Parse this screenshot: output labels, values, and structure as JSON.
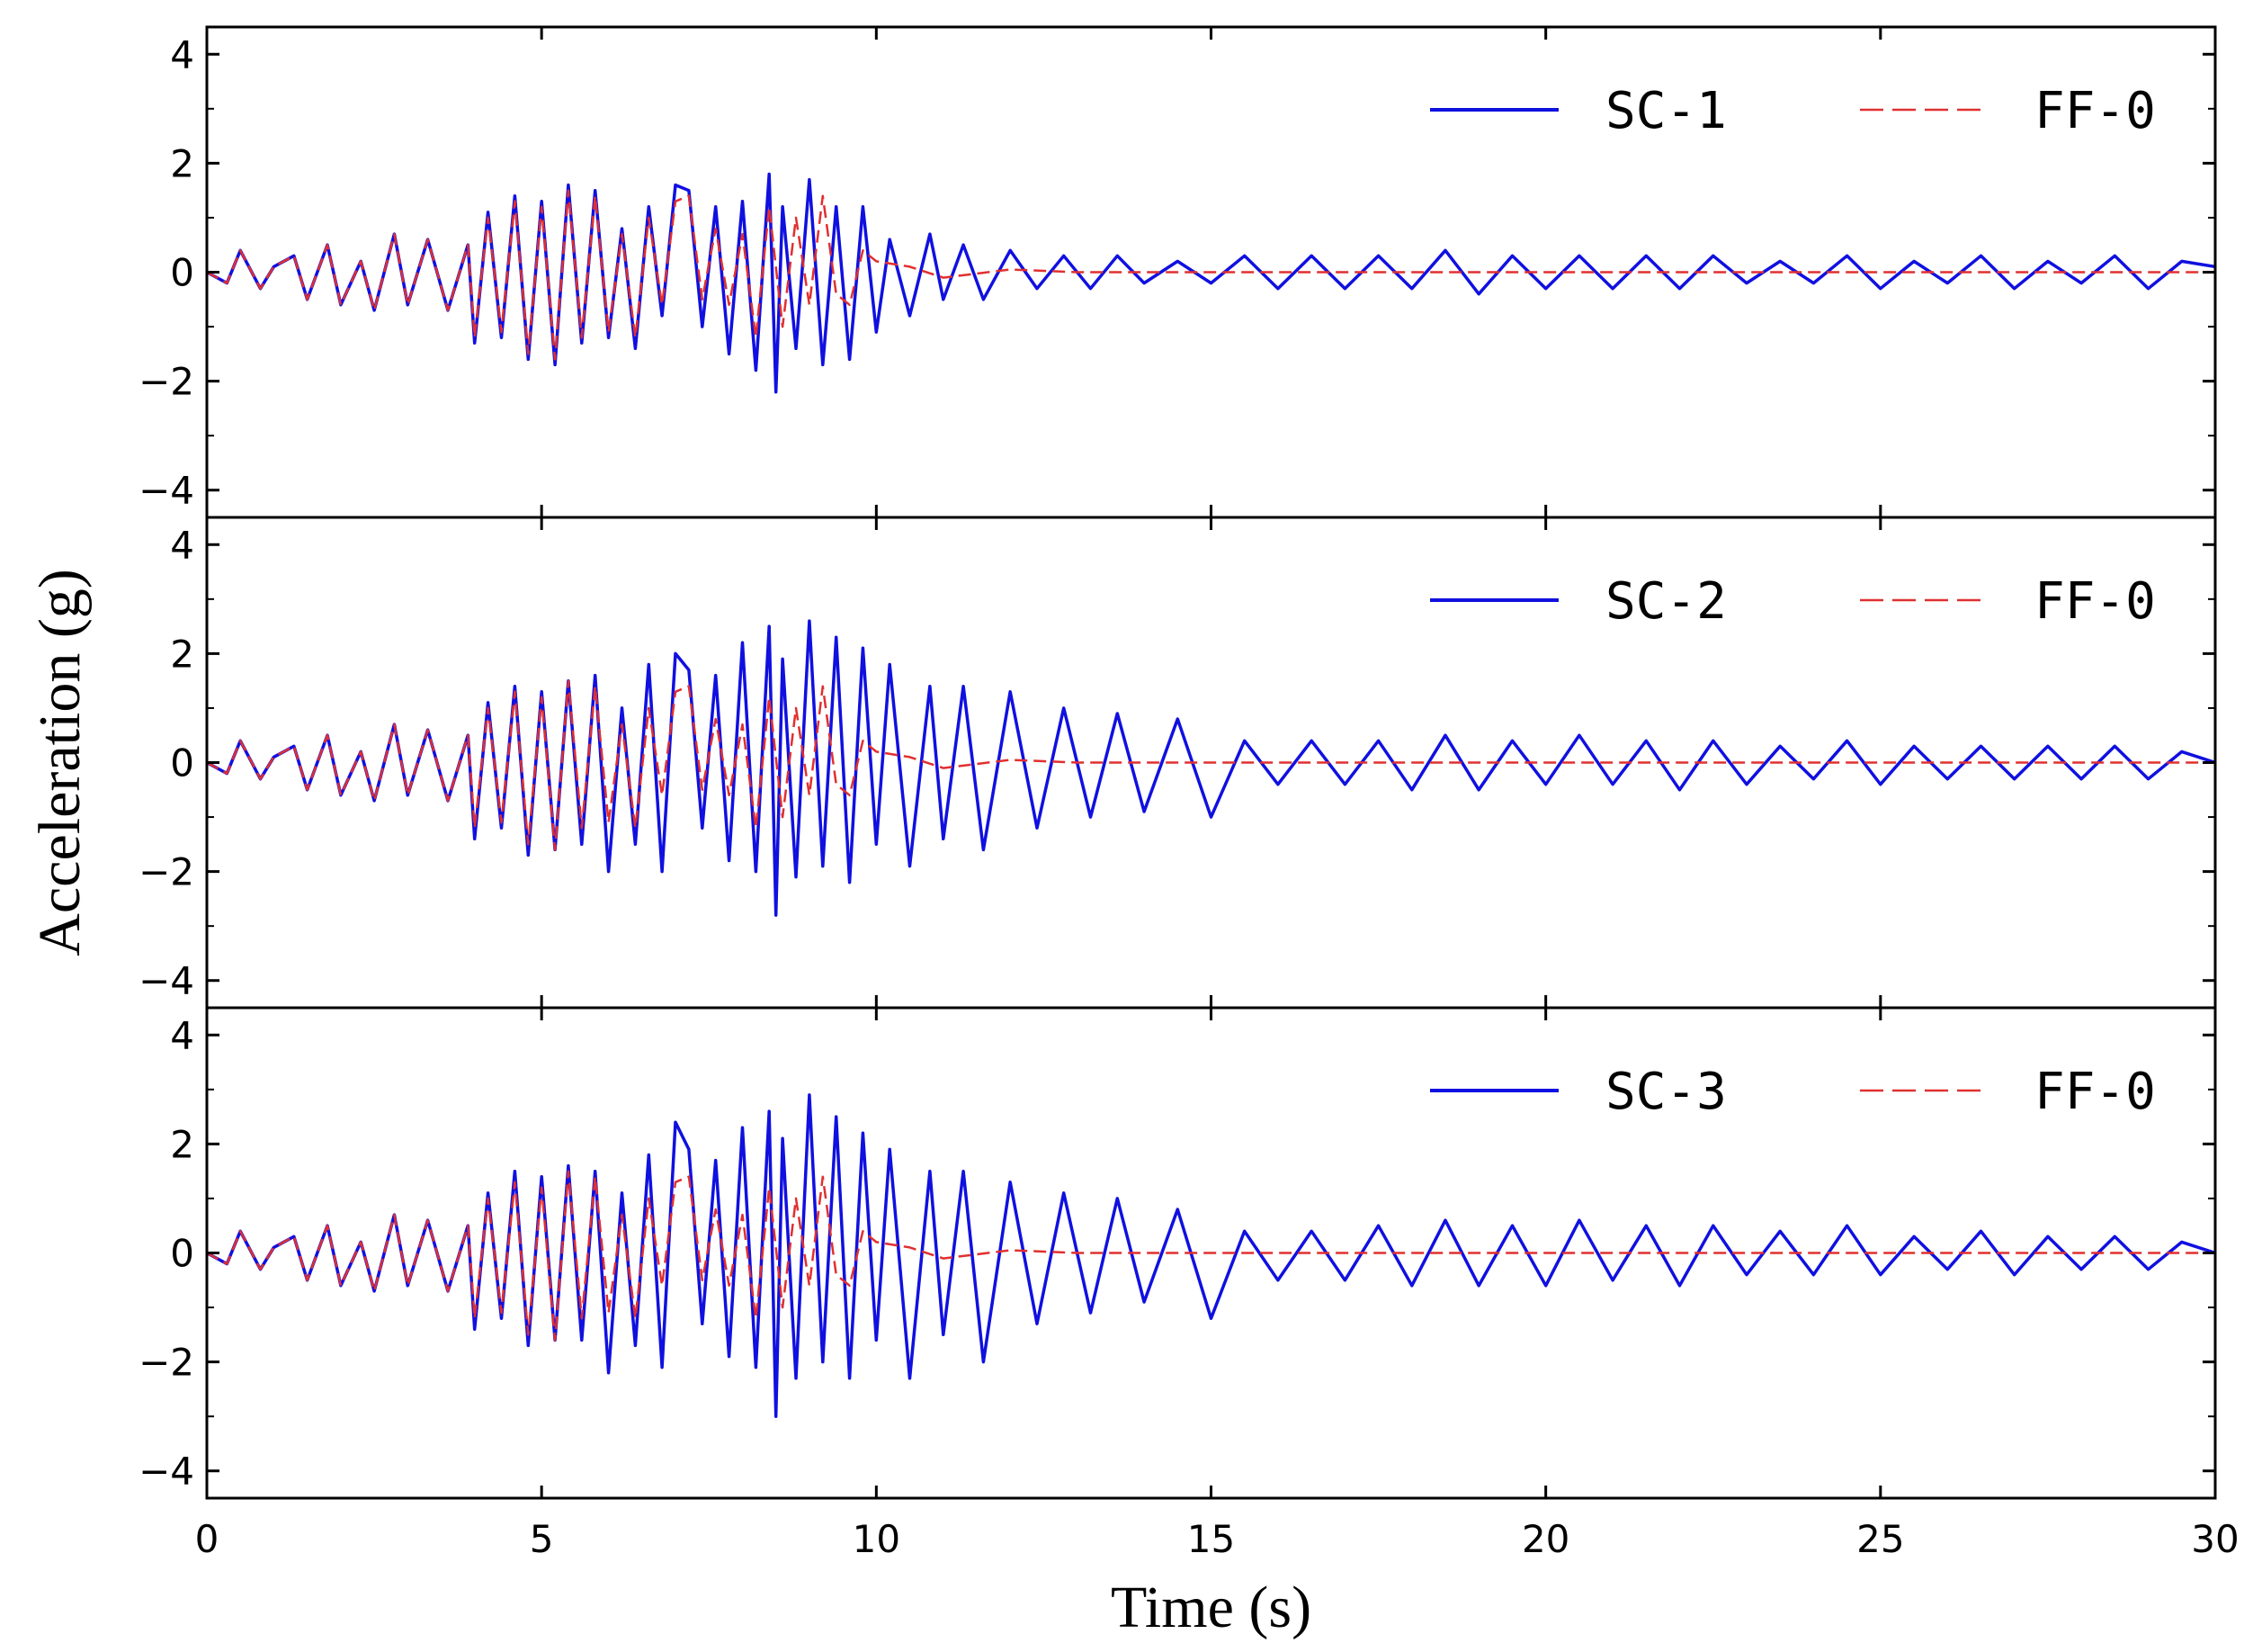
{
  "colors": {
    "primary": "#1010e0",
    "reference": "#e03030",
    "axis": "#000000"
  },
  "chart_data": {
    "type": "line",
    "xlabel": "Time (s)",
    "ylabel": "Acceleration (g)",
    "xlim": [
      0,
      30
    ],
    "ylim": [
      -4.5,
      4.5
    ],
    "xticks": [
      "0",
      "5",
      "10",
      "15",
      "20",
      "25",
      "30"
    ],
    "yticks": [
      "4",
      "2",
      "0",
      "−2",
      "−4"
    ],
    "grid": false,
    "legend_position": "top-right",
    "panels": [
      {
        "series": [
          {
            "name": "SC-1",
            "style": "solid",
            "x": [
              0,
              0.3,
              0.5,
              0.8,
              1,
              1.3,
              1.5,
              1.8,
              2,
              2.3,
              2.5,
              2.8,
              3,
              3.3,
              3.6,
              3.9,
              4,
              4.2,
              4.4,
              4.6,
              4.8,
              5,
              5.2,
              5.4,
              5.6,
              5.8,
              6,
              6.2,
              6.4,
              6.6,
              6.8,
              7,
              7.2,
              7.4,
              7.6,
              7.8,
              8,
              8.2,
              8.4,
              8.5,
              8.6,
              8.8,
              9,
              9.2,
              9.4,
              9.6,
              9.8,
              10,
              10.2,
              10.5,
              10.8,
              11,
              11.3,
              11.6,
              12,
              12.4,
              12.8,
              13.2,
              13.6,
              14,
              14.5,
              15,
              15.5,
              16,
              16.5,
              17,
              17.5,
              18,
              18.5,
              19,
              19.5,
              20,
              20.5,
              21,
              21.5,
              22,
              22.5,
              23,
              23.5,
              24,
              24.5,
              25,
              25.5,
              26,
              26.5,
              27,
              27.5,
              28,
              28.5,
              29,
              29.5,
              30
            ],
            "y": [
              0,
              -0.2,
              0.4,
              -0.3,
              0.1,
              0.3,
              -0.5,
              0.5,
              -0.6,
              0.2,
              -0.7,
              0.7,
              -0.6,
              0.6,
              -0.7,
              0.5,
              -1.3,
              1.1,
              -1.2,
              1.4,
              -1.6,
              1.3,
              -1.7,
              1.6,
              -1.3,
              1.5,
              -1.2,
              0.8,
              -1.4,
              1.2,
              -0.8,
              1.6,
              1.5,
              -1.0,
              1.2,
              -1.5,
              1.3,
              -1.8,
              1.8,
              -2.2,
              1.2,
              -1.4,
              1.7,
              -1.7,
              1.2,
              -1.6,
              1.2,
              -1.1,
              0.6,
              -0.8,
              0.7,
              -0.5,
              0.5,
              -0.5,
              0.4,
              -0.3,
              0.3,
              -0.3,
              0.3,
              -0.2,
              0.2,
              -0.2,
              0.3,
              -0.3,
              0.3,
              -0.3,
              0.3,
              -0.3,
              0.4,
              -0.4,
              0.3,
              -0.3,
              0.3,
              -0.3,
              0.3,
              -0.3,
              0.3,
              -0.2,
              0.2,
              -0.2,
              0.3,
              -0.3,
              0.2,
              -0.2,
              0.3,
              -0.3,
              0.2,
              -0.2,
              0.3,
              -0.3,
              0.2,
              0.1
            ]
          },
          {
            "name": "FF-0",
            "style": "dashed",
            "x": [
              0,
              0.3,
              0.5,
              0.8,
              1,
              1.3,
              1.5,
              1.8,
              2,
              2.3,
              2.5,
              2.8,
              3,
              3.3,
              3.6,
              3.9,
              4,
              4.2,
              4.4,
              4.6,
              4.8,
              5,
              5.2,
              5.4,
              5.6,
              5.8,
              6,
              6.2,
              6.4,
              6.6,
              6.8,
              7,
              7.2,
              7.4,
              7.6,
              7.8,
              8,
              8.2,
              8.4,
              8.6,
              8.8,
              9,
              9.2,
              9.4,
              9.6,
              9.8,
              10,
              10.5,
              11,
              12,
              13,
              14,
              15,
              17,
              19,
              21,
              23,
              25,
              27,
              29,
              30
            ],
            "y": [
              0,
              -0.2,
              0.4,
              -0.3,
              0.1,
              0.3,
              -0.5,
              0.5,
              -0.6,
              0.2,
              -0.7,
              0.7,
              -0.6,
              0.6,
              -0.7,
              0.5,
              -1.2,
              1.0,
              -1.1,
              1.3,
              -1.5,
              1.2,
              -1.6,
              1.5,
              -1.2,
              1.4,
              -1.1,
              0.7,
              -1.2,
              1.0,
              -0.6,
              1.3,
              1.4,
              -0.5,
              0.8,
              -0.6,
              0.7,
              -1.2,
              1.2,
              -1.0,
              1.0,
              -0.6,
              1.4,
              -0.4,
              -0.6,
              0.4,
              0.2,
              0.1,
              -0.1,
              0.05,
              0,
              0,
              0,
              0,
              0,
              0,
              0,
              0,
              0,
              0,
              0
            ]
          }
        ]
      },
      {
        "series": [
          {
            "name": "SC-2",
            "style": "solid",
            "x": [
              0,
              0.3,
              0.5,
              0.8,
              1,
              1.3,
              1.5,
              1.8,
              2,
              2.3,
              2.5,
              2.8,
              3,
              3.3,
              3.6,
              3.9,
              4,
              4.2,
              4.4,
              4.6,
              4.8,
              5,
              5.2,
              5.4,
              5.6,
              5.8,
              6,
              6.2,
              6.4,
              6.6,
              6.8,
              7,
              7.2,
              7.4,
              7.6,
              7.8,
              8,
              8.2,
              8.4,
              8.5,
              8.6,
              8.8,
              9,
              9.2,
              9.4,
              9.6,
              9.8,
              10,
              10.2,
              10.5,
              10.8,
              11,
              11.3,
              11.6,
              12,
              12.4,
              12.8,
              13.2,
              13.6,
              14,
              14.5,
              15,
              15.5,
              16,
              16.5,
              17,
              17.5,
              18,
              18.5,
              19,
              19.5,
              20,
              20.5,
              21,
              21.5,
              22,
              22.5,
              23,
              23.5,
              24,
              24.5,
              25,
              25.5,
              26,
              26.5,
              27,
              27.5,
              28,
              28.5,
              29,
              29.5,
              30
            ],
            "y": [
              0,
              -0.2,
              0.4,
              -0.3,
              0.1,
              0.3,
              -0.5,
              0.5,
              -0.6,
              0.2,
              -0.7,
              0.7,
              -0.6,
              0.6,
              -0.7,
              0.5,
              -1.4,
              1.1,
              -1.2,
              1.4,
              -1.7,
              1.3,
              -1.6,
              1.5,
              -1.5,
              1.6,
              -2.0,
              1.0,
              -1.5,
              1.8,
              -2.0,
              2.0,
              1.7,
              -1.2,
              1.6,
              -1.8,
              2.2,
              -2.0,
              2.5,
              -2.8,
              1.9,
              -2.1,
              2.6,
              -1.9,
              2.3,
              -2.2,
              2.1,
              -1.5,
              1.8,
              -1.9,
              1.4,
              -1.4,
              1.4,
              -1.6,
              1.3,
              -1.2,
              1.0,
              -1.0,
              0.9,
              -0.9,
              0.8,
              -1.0,
              0.4,
              -0.4,
              0.4,
              -0.4,
              0.4,
              -0.5,
              0.5,
              -0.5,
              0.4,
              -0.4,
              0.5,
              -0.4,
              0.4,
              -0.5,
              0.4,
              -0.4,
              0.3,
              -0.3,
              0.4,
              -0.4,
              0.3,
              -0.3,
              0.3,
              -0.3,
              0.3,
              -0.3,
              0.3,
              -0.3,
              0.2,
              0
            ]
          },
          {
            "name": "FF-0",
            "style": "dashed",
            "x": [
              0,
              0.3,
              0.5,
              0.8,
              1,
              1.3,
              1.5,
              1.8,
              2,
              2.3,
              2.5,
              2.8,
              3,
              3.3,
              3.6,
              3.9,
              4,
              4.2,
              4.4,
              4.6,
              4.8,
              5,
              5.2,
              5.4,
              5.6,
              5.8,
              6,
              6.2,
              6.4,
              6.6,
              6.8,
              7,
              7.2,
              7.4,
              7.6,
              7.8,
              8,
              8.2,
              8.4,
              8.6,
              8.8,
              9,
              9.2,
              9.4,
              9.6,
              9.8,
              10,
              10.5,
              11,
              12,
              13,
              14,
              15,
              17,
              19,
              21,
              23,
              25,
              27,
              29,
              30
            ],
            "y": [
              0,
              -0.2,
              0.4,
              -0.3,
              0.1,
              0.3,
              -0.5,
              0.5,
              -0.6,
              0.2,
              -0.7,
              0.7,
              -0.6,
              0.6,
              -0.7,
              0.5,
              -1.2,
              1.0,
              -1.1,
              1.3,
              -1.5,
              1.2,
              -1.6,
              1.5,
              -1.2,
              1.4,
              -1.1,
              0.7,
              -1.2,
              1.0,
              -0.6,
              1.3,
              1.4,
              -0.5,
              0.8,
              -0.6,
              0.7,
              -1.2,
              1.2,
              -1.0,
              1.0,
              -0.6,
              1.4,
              -0.4,
              -0.6,
              0.4,
              0.2,
              0.1,
              -0.1,
              0.05,
              0,
              0,
              0,
              0,
              0,
              0,
              0,
              0,
              0,
              0,
              0
            ]
          }
        ]
      },
      {
        "series": [
          {
            "name": "SC-3",
            "style": "solid",
            "x": [
              0,
              0.3,
              0.5,
              0.8,
              1,
              1.3,
              1.5,
              1.8,
              2,
              2.3,
              2.5,
              2.8,
              3,
              3.3,
              3.6,
              3.9,
              4,
              4.2,
              4.4,
              4.6,
              4.8,
              5,
              5.2,
              5.4,
              5.6,
              5.8,
              6,
              6.2,
              6.4,
              6.6,
              6.8,
              7,
              7.2,
              7.4,
              7.6,
              7.8,
              8,
              8.2,
              8.4,
              8.5,
              8.6,
              8.8,
              9,
              9.2,
              9.4,
              9.6,
              9.8,
              10,
              10.2,
              10.5,
              10.8,
              11,
              11.3,
              11.6,
              12,
              12.4,
              12.8,
              13.2,
              13.6,
              14,
              14.5,
              15,
              15.5,
              16,
              16.5,
              17,
              17.5,
              18,
              18.5,
              19,
              19.5,
              20,
              20.5,
              21,
              21.5,
              22,
              22.5,
              23,
              23.5,
              24,
              24.5,
              25,
              25.5,
              26,
              26.5,
              27,
              27.5,
              28,
              28.5,
              29,
              29.5,
              30
            ],
            "y": [
              0,
              -0.2,
              0.4,
              -0.3,
              0.1,
              0.3,
              -0.5,
              0.5,
              -0.6,
              0.2,
              -0.7,
              0.7,
              -0.6,
              0.6,
              -0.7,
              0.5,
              -1.4,
              1.1,
              -1.2,
              1.5,
              -1.7,
              1.4,
              -1.6,
              1.6,
              -1.6,
              1.5,
              -2.2,
              1.1,
              -1.7,
              1.8,
              -2.1,
              2.4,
              1.9,
              -1.3,
              1.7,
              -1.9,
              2.3,
              -2.1,
              2.6,
              -3.0,
              2.1,
              -2.3,
              2.9,
              -2.0,
              2.5,
              -2.3,
              2.2,
              -1.6,
              1.9,
              -2.3,
              1.5,
              -1.5,
              1.5,
              -2.0,
              1.3,
              -1.3,
              1.1,
              -1.1,
              1.0,
              -0.9,
              0.8,
              -1.2,
              0.4,
              -0.5,
              0.4,
              -0.5,
              0.5,
              -0.6,
              0.6,
              -0.6,
              0.5,
              -0.6,
              0.6,
              -0.5,
              0.5,
              -0.6,
              0.5,
              -0.4,
              0.4,
              -0.4,
              0.5,
              -0.4,
              0.3,
              -0.3,
              0.4,
              -0.4,
              0.3,
              -0.3,
              0.3,
              -0.3,
              0.2,
              0
            ]
          },
          {
            "name": "FF-0",
            "style": "dashed",
            "x": [
              0,
              0.3,
              0.5,
              0.8,
              1,
              1.3,
              1.5,
              1.8,
              2,
              2.3,
              2.5,
              2.8,
              3,
              3.3,
              3.6,
              3.9,
              4,
              4.2,
              4.4,
              4.6,
              4.8,
              5,
              5.2,
              5.4,
              5.6,
              5.8,
              6,
              6.2,
              6.4,
              6.6,
              6.8,
              7,
              7.2,
              7.4,
              7.6,
              7.8,
              8,
              8.2,
              8.4,
              8.6,
              8.8,
              9,
              9.2,
              9.4,
              9.6,
              9.8,
              10,
              10.5,
              11,
              12,
              13,
              14,
              15,
              17,
              19,
              21,
              23,
              25,
              27,
              29,
              30
            ],
            "y": [
              0,
              -0.2,
              0.4,
              -0.3,
              0.1,
              0.3,
              -0.5,
              0.5,
              -0.6,
              0.2,
              -0.7,
              0.7,
              -0.6,
              0.6,
              -0.7,
              0.5,
              -1.2,
              1.0,
              -1.1,
              1.3,
              -1.5,
              1.2,
              -1.6,
              1.5,
              -1.2,
              1.4,
              -1.1,
              0.7,
              -1.2,
              1.0,
              -0.6,
              1.3,
              1.4,
              -0.5,
              0.8,
              -0.6,
              0.7,
              -1.2,
              1.2,
              -1.0,
              1.0,
              -0.6,
              1.4,
              -0.4,
              -0.6,
              0.4,
              0.2,
              0.1,
              -0.1,
              0.05,
              0,
              0,
              0,
              0,
              0,
              0,
              0,
              0,
              0,
              0,
              0
            ]
          }
        ]
      }
    ]
  }
}
